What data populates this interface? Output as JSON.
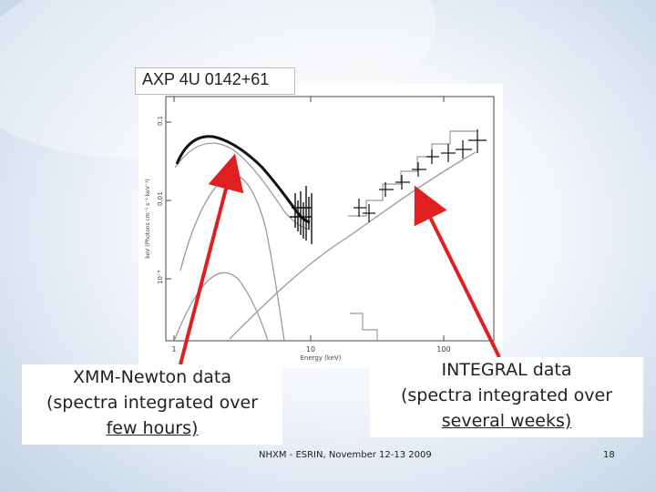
{
  "slide": {
    "title": "AXP 4U 0142+61",
    "callout_left": {
      "line1": "XMM-Newton data",
      "line2": "(spectra integrated over",
      "line3": "few hours)"
    },
    "callout_right": {
      "line1": "INTEGRAL data",
      "line2": "(spectra integrated over",
      "line3": "several  weeks)"
    },
    "footer": "NHXM - ESRIN, November 12-13 2009",
    "page_number": "18",
    "arrow_color": "#e02020"
  },
  "plot": {
    "xlabel": "Energy (keV)",
    "ylabel": "keV (Photons cm⁻² s⁻¹ keV⁻¹)",
    "x_ticks": [
      "1",
      "10",
      "100"
    ],
    "y_ticks": [
      "0.1",
      "0.01",
      "10⁻³"
    ]
  }
}
